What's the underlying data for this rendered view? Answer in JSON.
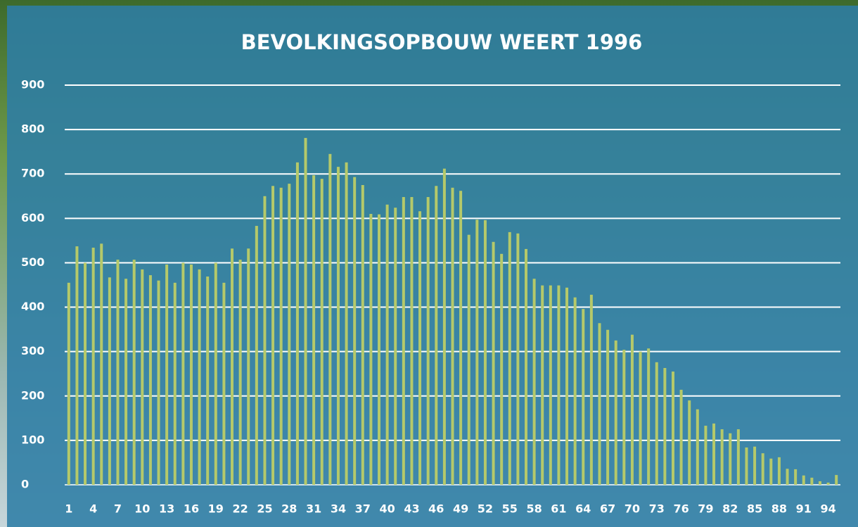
{
  "chart_data": {
    "type": "bar",
    "title": "BEVOLKINGSOPBOUW WEERT 1996",
    "categories": [
      "1",
      null,
      null,
      "4",
      null,
      null,
      "7",
      null,
      null,
      "10",
      null,
      null,
      "13",
      null,
      null,
      "16",
      null,
      null,
      "19",
      null,
      null,
      "22",
      null,
      null,
      "25",
      null,
      null,
      "28",
      null,
      null,
      "31",
      null,
      null,
      "34",
      null,
      null,
      "37",
      null,
      null,
      "40",
      null,
      null,
      "43",
      null,
      null,
      "46",
      null,
      null,
      "49",
      null,
      null,
      "52",
      null,
      null,
      "55",
      null,
      null,
      "58",
      null,
      null,
      "61",
      null,
      null,
      "64",
      null,
      null,
      "67",
      null,
      null,
      "70",
      null,
      null,
      "73",
      null,
      null,
      "76",
      null,
      null,
      "79",
      null,
      null,
      "82",
      null,
      null,
      "85",
      null,
      null,
      "88",
      null,
      null,
      "91",
      null,
      null,
      "94",
      null
    ],
    "values": [
      455,
      537,
      500,
      534,
      543,
      467,
      507,
      464,
      507,
      485,
      472,
      460,
      496,
      455,
      500,
      496,
      485,
      469,
      500,
      455,
      532,
      507,
      532,
      583,
      650,
      673,
      669,
      678,
      726,
      781,
      697,
      689,
      745,
      716,
      726,
      693,
      675,
      610,
      609,
      631,
      624,
      648,
      648,
      616,
      648,
      673,
      712,
      669,
      662,
      563,
      597,
      596,
      547,
      520,
      569,
      566,
      531,
      464,
      449,
      449,
      449,
      444,
      422,
      396,
      428,
      364,
      349,
      325,
      304,
      338,
      300,
      307,
      276,
      263,
      255,
      214,
      190,
      170,
      133,
      138,
      125,
      116,
      125,
      84,
      86,
      71,
      59,
      62,
      36,
      35,
      21,
      16,
      8,
      5,
      22
    ],
    "color": "#b5c96a",
    "ylim": [
      0,
      900
    ],
    "yticks": [
      0,
      100,
      200,
      300,
      400,
      500,
      600,
      700,
      800,
      900
    ],
    "grid": true
  }
}
